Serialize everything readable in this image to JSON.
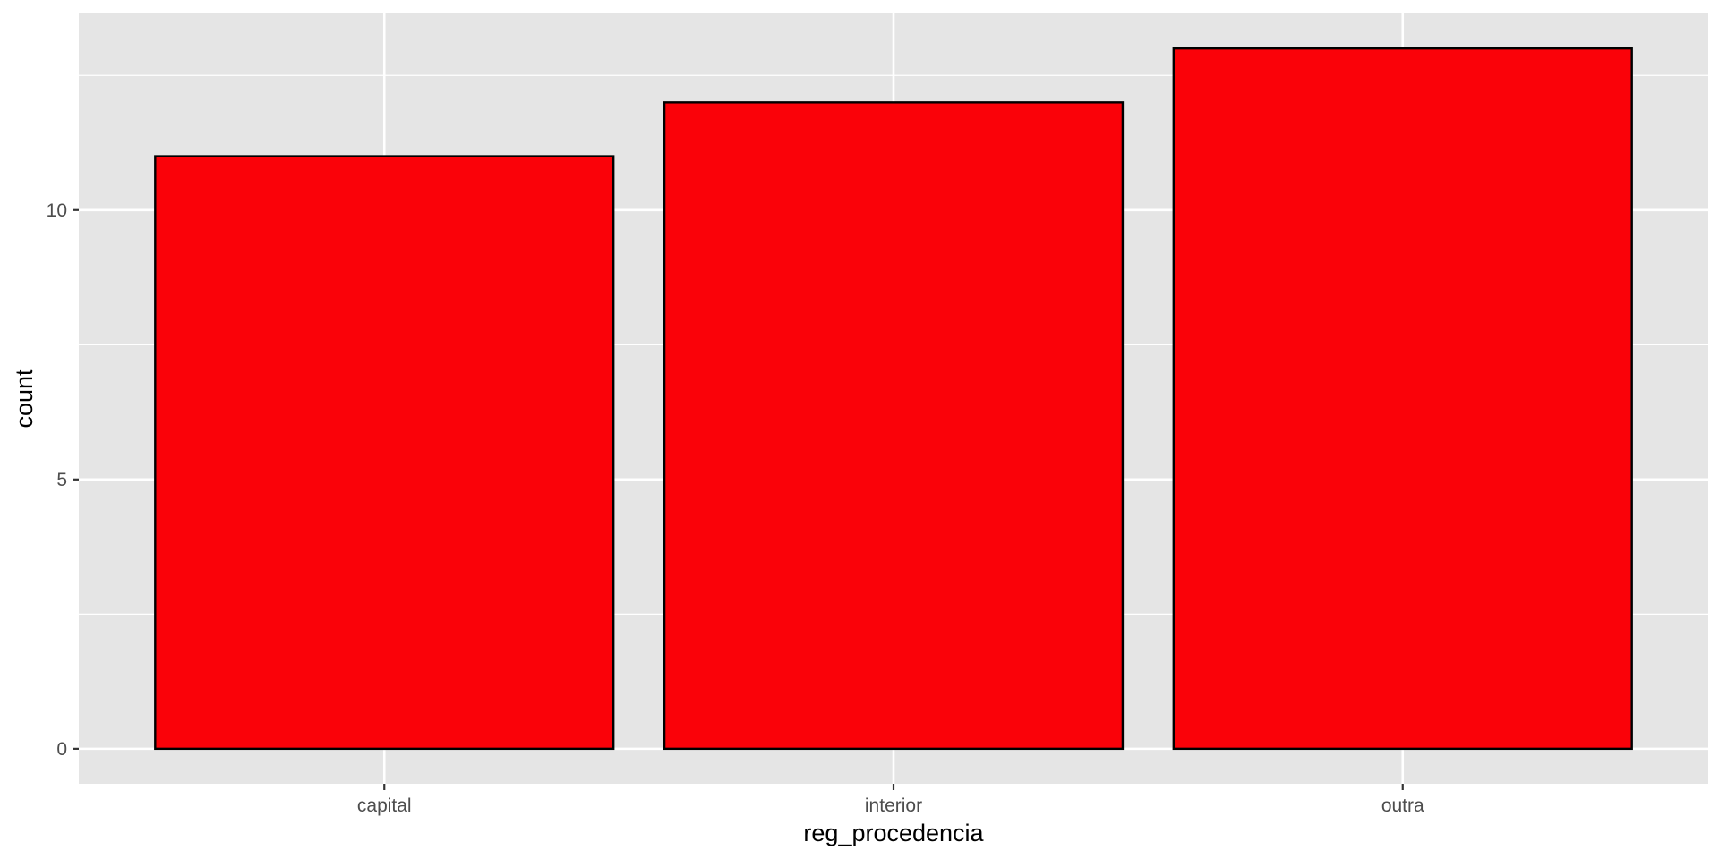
{
  "chart_data": {
    "type": "bar",
    "title": "",
    "xlabel": "reg_procedencia",
    "ylabel": "count",
    "categories": [
      "capital",
      "interior",
      "outra"
    ],
    "values": [
      11,
      12,
      13
    ],
    "ylim": [
      -0.65,
      13.65
    ],
    "y_ticks": [
      0,
      5,
      10
    ],
    "y_tick_labels": [
      "0",
      "5",
      "10"
    ],
    "y_minor_ticks": [
      2.5,
      7.5,
      12.5
    ],
    "grid": true,
    "legend": "none",
    "colors": {
      "bar_fill": "#FA0209",
      "bar_outline": "#000000",
      "panel_background": "#E5E5E5",
      "grid_line": "#FFFFFF",
      "tick_text": "#4D4D4D",
      "axis_title": "#000000"
    }
  }
}
